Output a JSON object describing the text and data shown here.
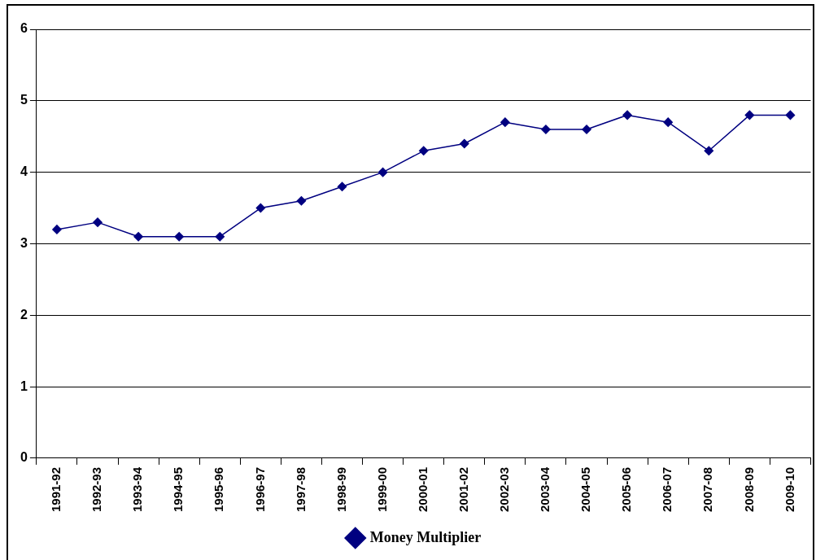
{
  "chart_data": {
    "type": "line",
    "categories": [
      "1991-92",
      "1992-93",
      "1993-94",
      "1994-95",
      "1995-96",
      "1996-97",
      "1997-98",
      "1998-99",
      "1999-00",
      "2000-01",
      "2001-02",
      "2002-03",
      "2003-04",
      "2004-05",
      "2005-06",
      "2006-07",
      "2007-08",
      "2008-09",
      "2009-10"
    ],
    "series": [
      {
        "name": "Money Multiplier",
        "color": "#000080",
        "values": [
          3.2,
          3.3,
          3.1,
          3.1,
          3.1,
          3.5,
          3.6,
          3.8,
          4.0,
          4.3,
          4.4,
          4.7,
          4.6,
          4.6,
          4.8,
          4.7,
          4.3,
          4.8,
          4.8
        ]
      }
    ],
    "ylim": [
      0,
      6
    ],
    "yticks": [
      0,
      1,
      2,
      3,
      4,
      5,
      6
    ],
    "grid": "y",
    "legend": "bottom",
    "marker": "diamond",
    "line_style": "solid"
  }
}
